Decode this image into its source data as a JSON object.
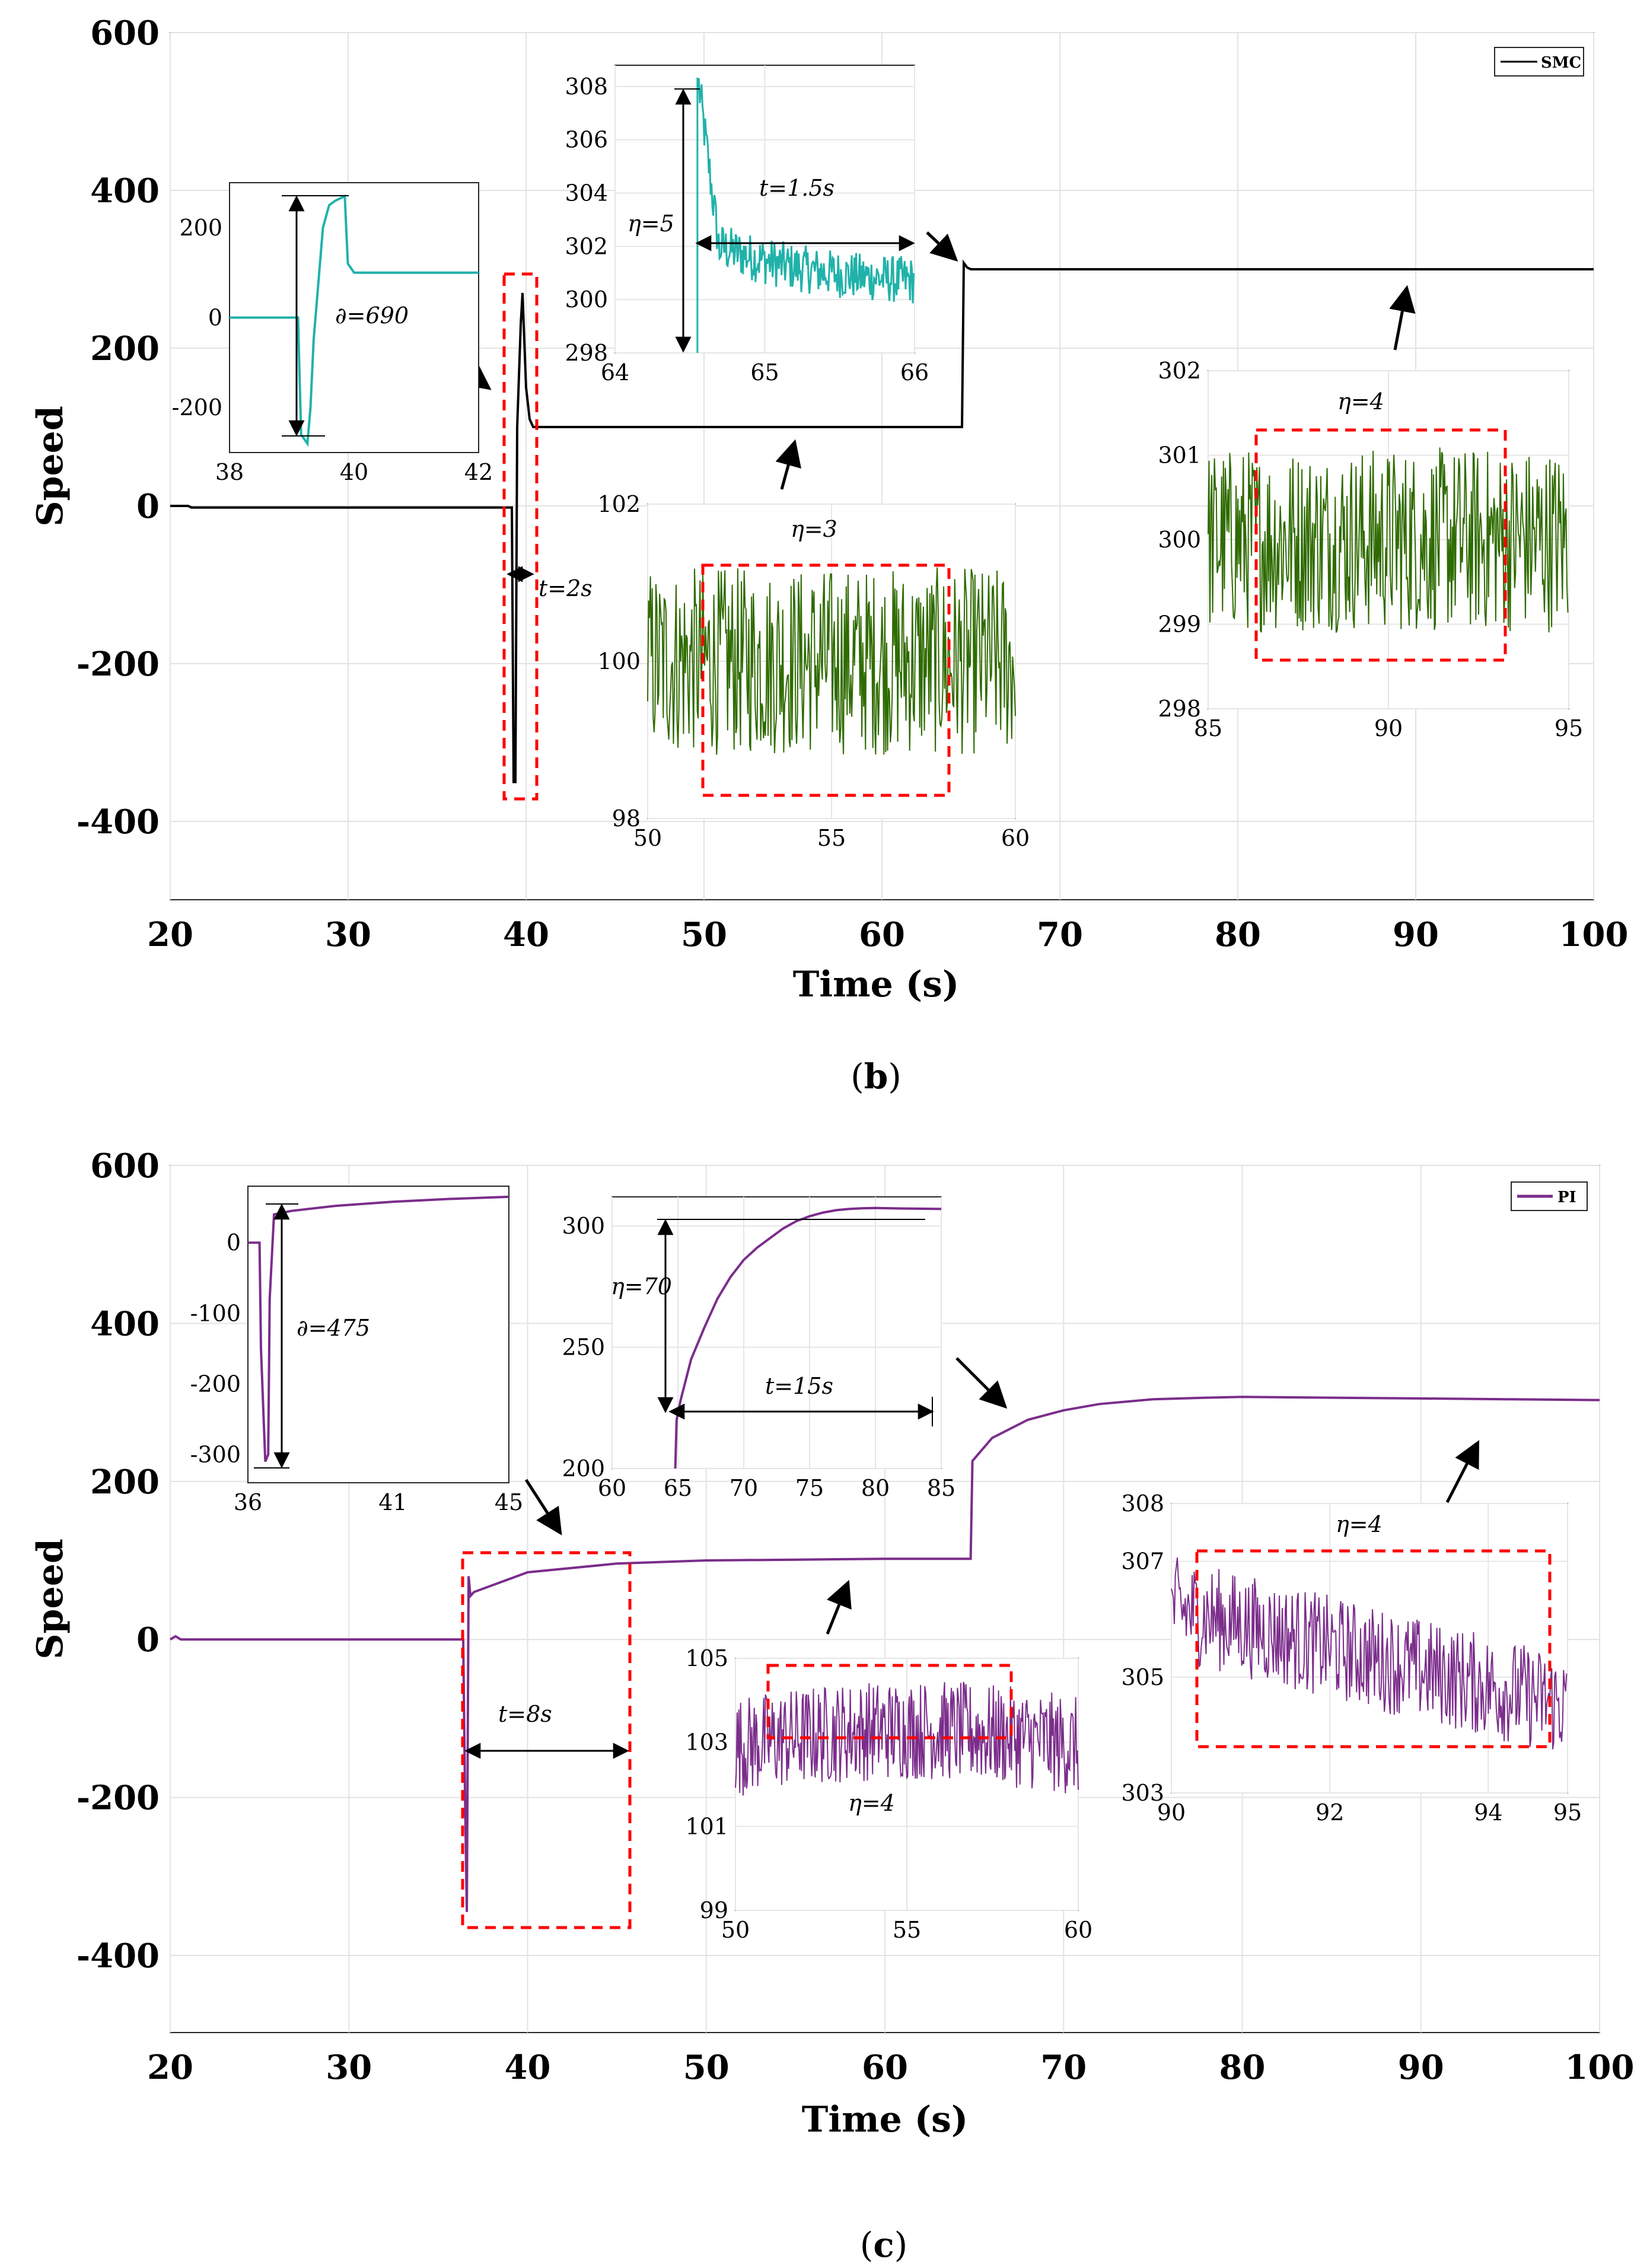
{
  "panels": [
    {
      "id": "b",
      "caption_open": "(",
      "caption_letter": "b",
      "caption_close": ")",
      "line_color": "#000000",
      "zoom_color": "#20b2aa",
      "ripple_color": "#2e6b00",
      "legend_label": "SMC",
      "main": {
        "title": "",
        "xlabel": "Time (s)",
        "ylabel": "Speed",
        "xlim": [
          20,
          100
        ],
        "ylim": [
          -500,
          600
        ],
        "xticks": [
          "20",
          "30",
          "40",
          "50",
          "60",
          "70",
          "80",
          "90",
          "100"
        ],
        "yticks": [
          "-400",
          "-200",
          "0",
          "200",
          "400",
          "600"
        ],
        "grid": true,
        "series": [
          {
            "name": "SMC",
            "x": [
              20,
              21,
              21.2,
              39.2,
              39.3,
              39.4,
              39.5,
              39.7,
              39.8,
              40.0,
              40.2,
              40.4,
              40.5,
              64.5,
              64.6,
              64.8,
              65,
              100
            ],
            "y": [
              0,
              0,
              -2,
              -2,
              -350,
              -350,
              100,
              230,
              270,
              150,
              110,
              100,
              100,
              100,
              308,
              302,
              300,
              300
            ]
          }
        ]
      },
      "insets": [
        {
          "id": "b-startup",
          "xlim": [
            38,
            42
          ],
          "ylim": [
            -300,
            300
          ],
          "xticks": [
            "38",
            "40",
            "42"
          ],
          "xtick_values": [
            38,
            40,
            42
          ],
          "yticks": [
            "200",
            "0",
            "-200"
          ],
          "ytick_values": [
            200,
            0,
            -200
          ],
          "annotation": "∂=690",
          "series_x": [
            38,
            39.1,
            39.15,
            39.25,
            39.3,
            39.35,
            39.5,
            39.6,
            39.7,
            39.85,
            39.9,
            39.95,
            40.0,
            40.1,
            42
          ],
          "series_y": [
            0,
            0,
            -260,
            -280,
            -200,
            -50,
            200,
            250,
            260,
            270,
            120,
            110,
            100,
            100,
            100
          ]
        },
        {
          "id": "b-step",
          "xlim": [
            64,
            66
          ],
          "ylim": [
            298,
            308.8
          ],
          "xticks": [
            "64",
            "65",
            "66"
          ],
          "xtick_values": [
            64,
            65,
            66
          ],
          "yticks": [
            "298",
            "300",
            "302",
            "304",
            "306",
            "308"
          ],
          "ytick_values": [
            298,
            300,
            302,
            304,
            306,
            308
          ],
          "annotation_eta": "η=5",
          "annotation_t": "t=1.5s"
        },
        {
          "id": "b-ripple-100",
          "xlim": [
            50,
            60
          ],
          "ylim": [
            98,
            102
          ],
          "xticks": [
            "50",
            "55",
            "60"
          ],
          "xtick_values": [
            50,
            55,
            60
          ],
          "yticks": [
            "98",
            "100",
            "102"
          ],
          "ytick_values": [
            98,
            100,
            102
          ],
          "annotation": "η=3",
          "band_center": 100,
          "band_amplitude": 1.2
        },
        {
          "id": "b-ripple-300",
          "xlim": [
            85,
            95
          ],
          "ylim": [
            298,
            302
          ],
          "xticks": [
            "85",
            "90",
            "95"
          ],
          "xtick_values": [
            85,
            90,
            95
          ],
          "yticks": [
            "298",
            "299",
            "300",
            "301",
            "302"
          ],
          "ytick_values": [
            298,
            299,
            300,
            301,
            302
          ],
          "annotation": "η=4",
          "band_center": 300,
          "band_amplitude": 1.1
        }
      ],
      "main_annotation": "t=2s"
    },
    {
      "id": "c",
      "caption_open": "(",
      "caption_letter": "c",
      "caption_close": ")",
      "line_color": "#7b2d8b",
      "zoom_color": "#7b2d8b",
      "ripple_color": "#7b2d8b",
      "legend_label": "PI",
      "main": {
        "title": "",
        "xlabel": "Time (s)",
        "ylabel": "Speed",
        "xlim": [
          20,
          100
        ],
        "ylim": [
          -500,
          600
        ],
        "xticks": [
          "20",
          "30",
          "40",
          "50",
          "60",
          "70",
          "80",
          "90",
          "100"
        ],
        "yticks": [
          "-400",
          "-200",
          "0",
          "200",
          "400",
          "600"
        ],
        "grid": true,
        "series": [
          {
            "name": "PI",
            "x": [
              20,
              20.3,
              20.6,
              36.4,
              36.5,
              36.6,
              36.7,
              36.8,
              37,
              40,
              45,
              50,
              55,
              60,
              64.8,
              64.9,
              66,
              68,
              70,
              72,
              75,
              78,
              80,
              85,
              90,
              95,
              100
            ],
            "y": [
              0,
              4,
              0,
              0,
              -200,
              -345,
              80,
              55,
              60,
              85,
              96,
              100,
              101,
              102,
              102,
              226,
              255,
              278,
              290,
              298,
              304,
              306,
              307,
              306,
              305,
              304,
              303
            ]
          }
        ]
      },
      "insets": [
        {
          "id": "c-startup",
          "xlim": [
            36,
            45
          ],
          "ylim": [
            -340,
            80
          ],
          "xticks": [
            "36",
            "41",
            "45"
          ],
          "xtick_values": [
            36,
            41,
            45
          ],
          "yticks": [
            "0",
            "-100",
            "-200",
            "-300"
          ],
          "ytick_values": [
            0,
            -100,
            -200,
            -300
          ],
          "annotation": "∂=475",
          "series_x": [
            36,
            36.4,
            36.45,
            36.6,
            36.7,
            36.75,
            36.9,
            37.5,
            39,
            41,
            43,
            45
          ],
          "series_y": [
            0,
            0,
            -150,
            -310,
            -300,
            -80,
            40,
            45,
            52,
            58,
            62,
            65
          ]
        },
        {
          "id": "c-step",
          "xlim": [
            60,
            85
          ],
          "ylim": [
            200,
            312
          ],
          "xticks": [
            "60",
            "65",
            "70",
            "75",
            "80",
            "85"
          ],
          "xtick_values": [
            60,
            65,
            70,
            75,
            80,
            85
          ],
          "yticks": [
            "200",
            "250",
            "300"
          ],
          "ytick_values": [
            200,
            250,
            300
          ],
          "annotation_eta": "η=70",
          "annotation_t": "t=15s",
          "series_x": [
            64.8,
            64.9,
            65.2,
            66,
            67,
            68,
            69,
            70,
            71,
            72,
            73,
            74,
            75,
            76,
            77,
            78,
            79,
            80,
            82,
            85
          ],
          "series_y": [
            200,
            220,
            228,
            245,
            258,
            270,
            279,
            286,
            291,
            295,
            299,
            302,
            304,
            305.5,
            306.5,
            307,
            307.3,
            307.4,
            307.2,
            307
          ]
        },
        {
          "id": "c-ripple-100",
          "xlim": [
            50,
            60
          ],
          "ylim": [
            99,
            105
          ],
          "xticks": [
            "50",
            "55",
            "60"
          ],
          "xtick_values": [
            50,
            55,
            60
          ],
          "yticks": [
            "99",
            "101",
            "103",
            "105"
          ],
          "ytick_values": [
            99,
            101,
            103,
            105
          ],
          "annotation": "η=4",
          "band_center": 102.9,
          "band_amplitude": 1.2
        },
        {
          "id": "c-ripple-300",
          "xlim": [
            90,
            95
          ],
          "ylim": [
            303,
            308
          ],
          "xticks": [
            "90",
            "92",
            "94",
            "95"
          ],
          "xtick_values": [
            90,
            92,
            94,
            95
          ],
          "yticks": [
            "303",
            "305",
            "307",
            "308"
          ],
          "ytick_values": [
            303,
            305,
            307,
            308
          ],
          "annotation": "η=4",
          "trend_start": 306.2,
          "trend_end": 304.5,
          "band_amplitude": 0.9
        }
      ],
      "main_annotation": "t=8s"
    }
  ]
}
